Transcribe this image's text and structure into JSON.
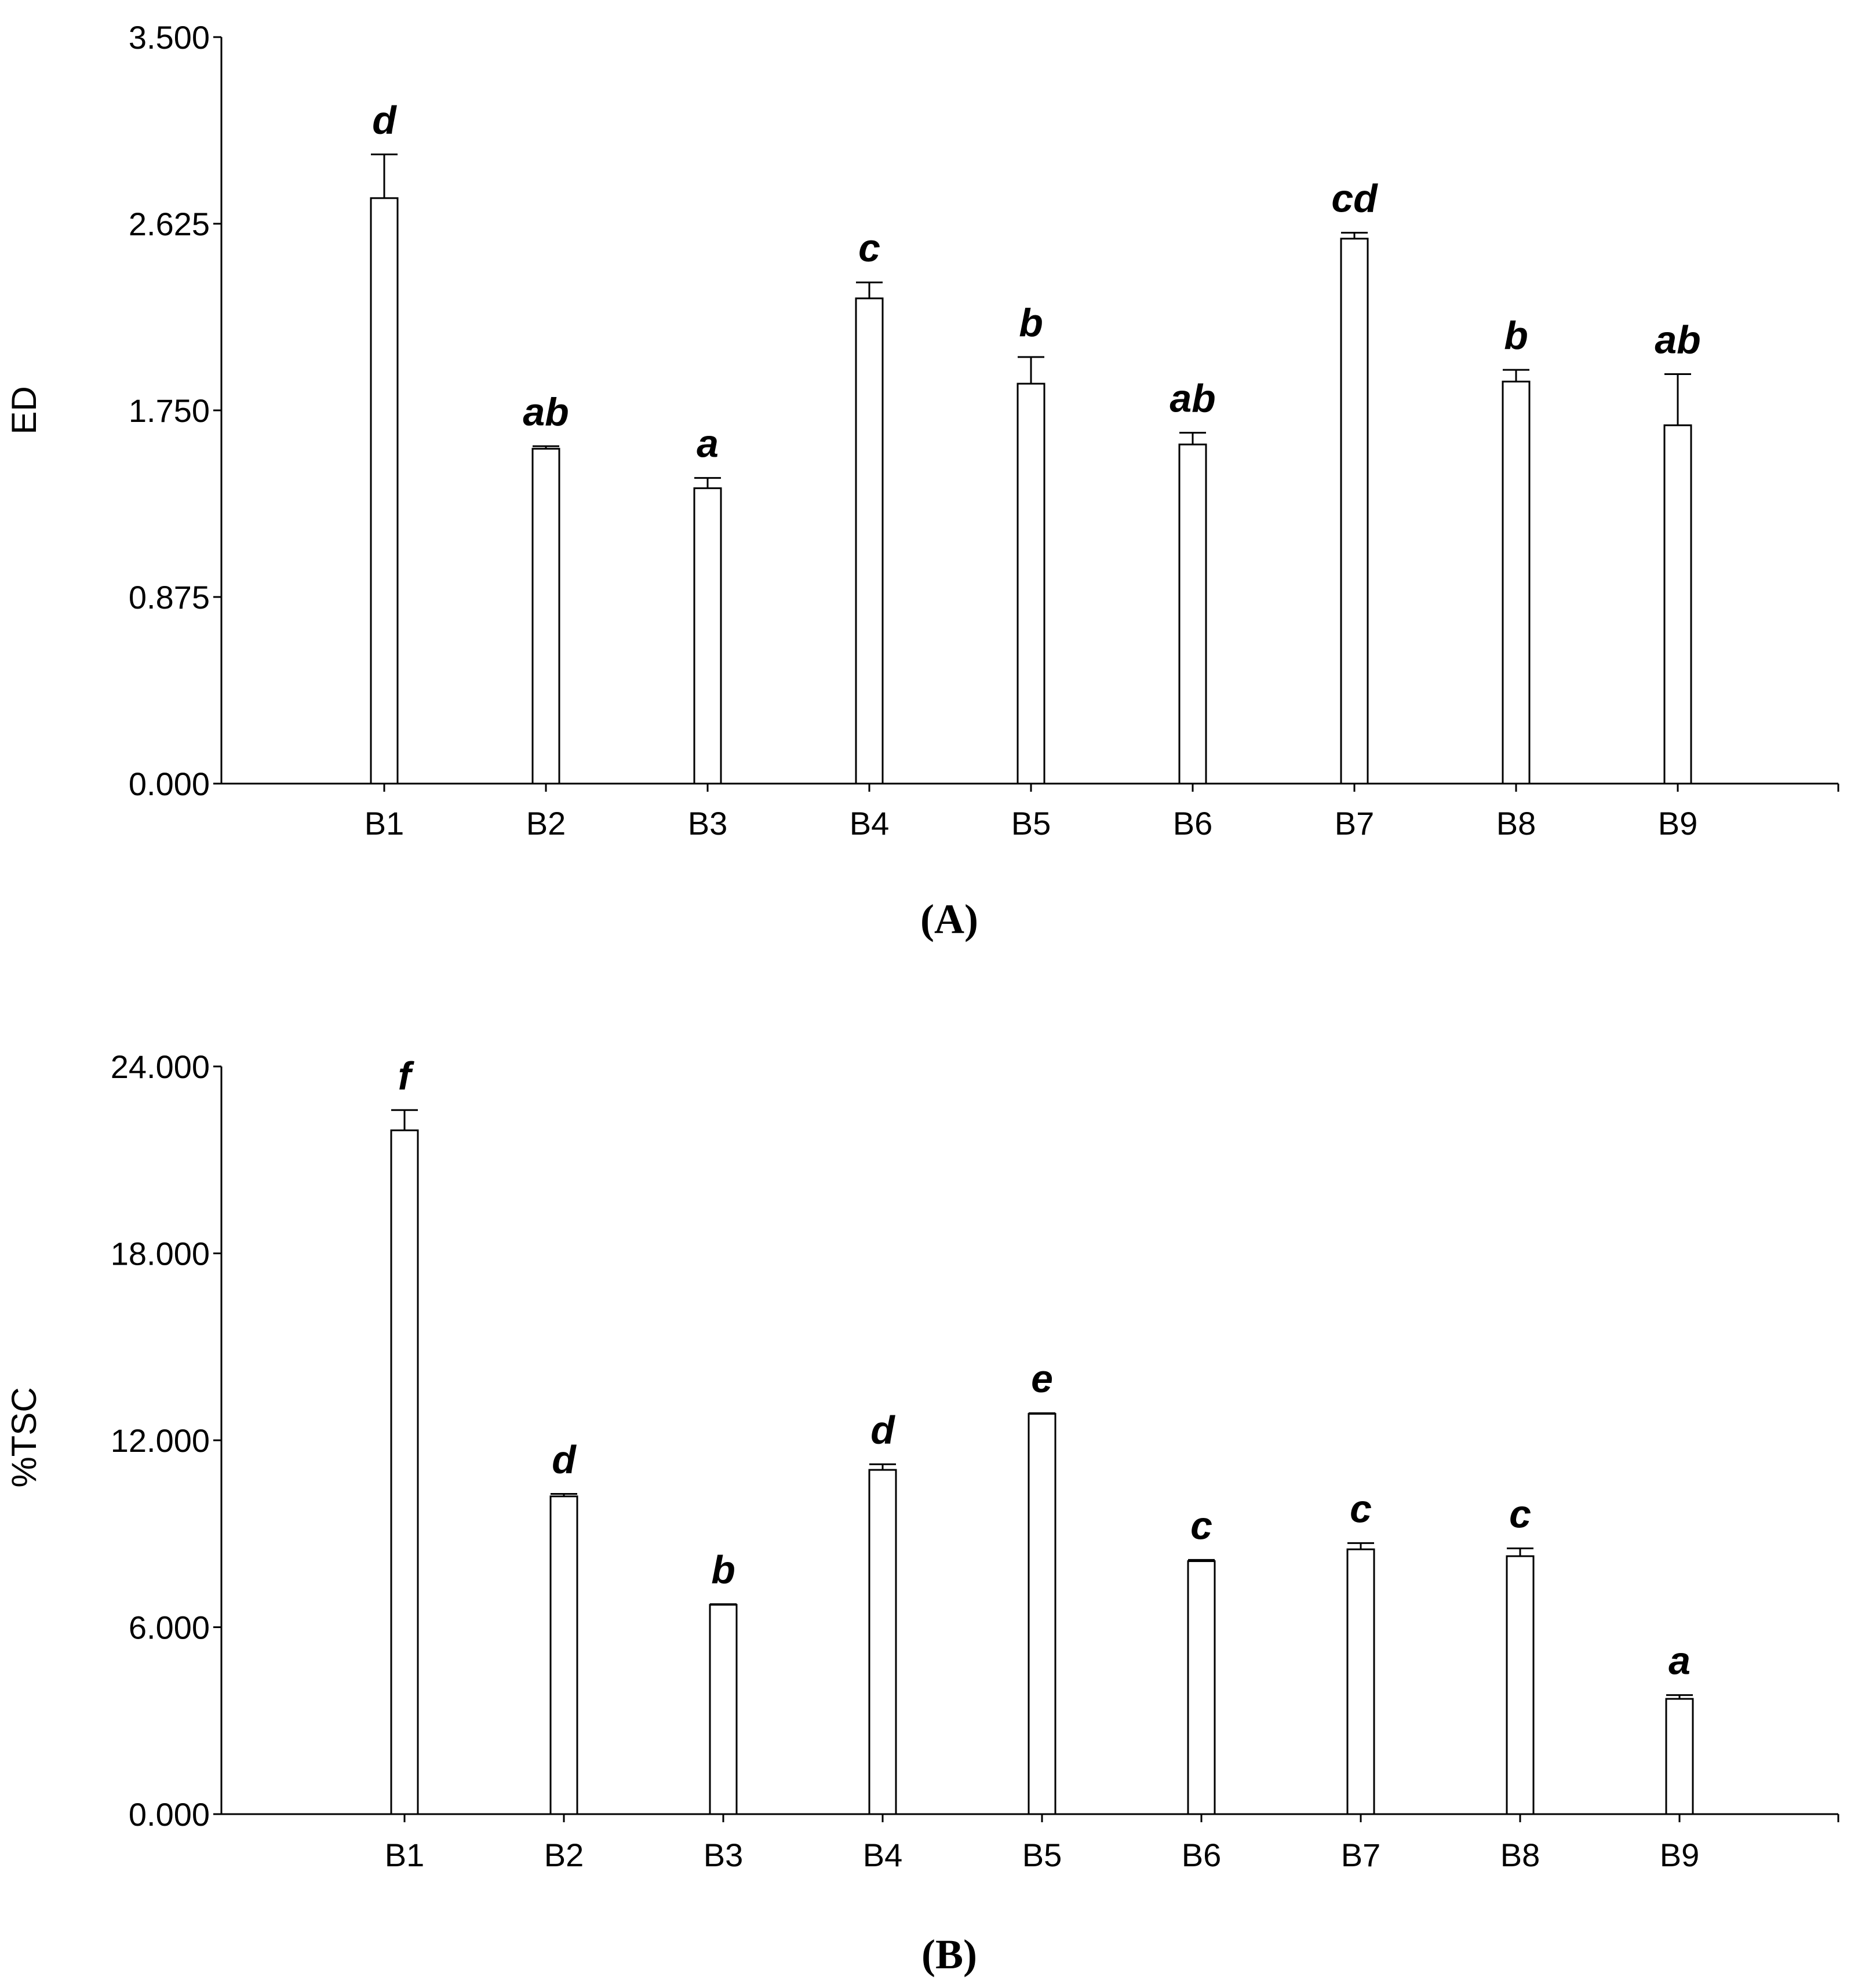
{
  "chart_data": [
    {
      "type": "bar",
      "panel_label": "(A)",
      "ylabel": "ED",
      "xlabel": "",
      "ylim": [
        0,
        3.5
      ],
      "yticks": [
        "0.000",
        "0.875",
        "1.750",
        "2.625",
        "3.500"
      ],
      "categories": [
        "B1",
        "B2",
        "B3",
        "B4",
        "B5",
        "B6",
        "B7",
        "B8",
        "B9"
      ],
      "values": [
        2.745,
        1.57,
        1.385,
        2.275,
        1.875,
        1.59,
        2.555,
        1.885,
        1.68
      ],
      "errors": [
        0.205,
        0.012,
        0.048,
        0.075,
        0.125,
        0.055,
        0.028,
        0.055,
        0.24
      ],
      "significance": [
        "d",
        "ab",
        "a",
        "c",
        "b",
        "ab",
        "cd",
        "b",
        "ab"
      ],
      "grid": false,
      "bar_fill": "#ffffff",
      "bar_stroke": "#000000"
    },
    {
      "type": "bar",
      "panel_label": "(B)",
      "ylabel": "%TSC",
      "xlabel": "",
      "ylim": [
        0,
        24
      ],
      "yticks": [
        "0.000",
        "6.000",
        "12.000",
        "18.000",
        "24.000"
      ],
      "categories": [
        "B1",
        "B2",
        "B3",
        "B4",
        "B5",
        "B6",
        "B7",
        "B8",
        "B9"
      ],
      "values": [
        21.95,
        10.2,
        6.72,
        11.05,
        12.85,
        8.12,
        8.5,
        8.28,
        3.7
      ],
      "errors": [
        0.65,
        0.08,
        0.02,
        0.18,
        0.02,
        0.04,
        0.2,
        0.25,
        0.12
      ],
      "significance": [
        "f",
        "d",
        "b",
        "d",
        "e",
        "c",
        "c",
        "c",
        "a"
      ],
      "grid": false,
      "bar_fill": "#ffffff",
      "bar_stroke": "#000000"
    }
  ]
}
